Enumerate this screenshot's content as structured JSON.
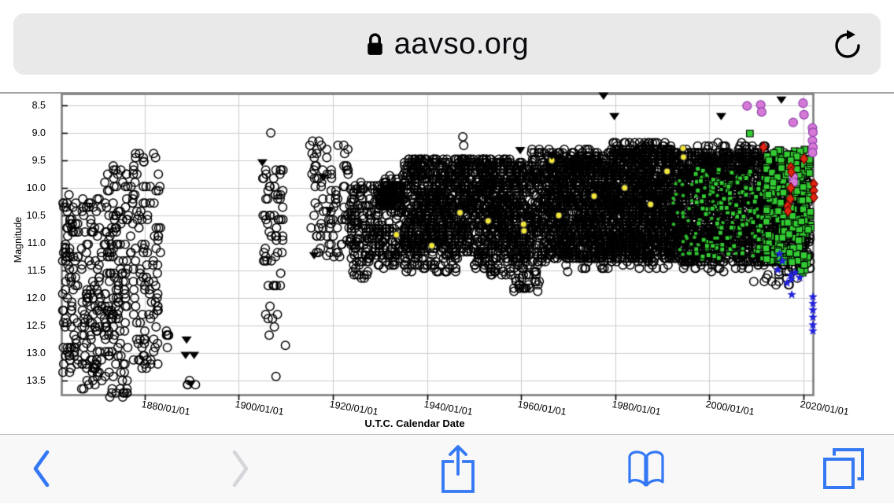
{
  "browser": {
    "url": "aavso.org",
    "lock_icon": "lock-icon",
    "reload_icon": "reload-icon"
  },
  "toolbar": {
    "accent_color": "#3478f4",
    "disabled_color": "#d5d5da",
    "icons": [
      "back-chevron-icon",
      "forward-chevron-icon",
      "share-icon",
      "bookmarks-icon",
      "tabs-icon"
    ]
  },
  "chart_data": {
    "type": "scatter",
    "title": "",
    "xlabel": "U.T.C. Calendar Date",
    "ylabel": "Magnitude",
    "grid": true,
    "legend": "none",
    "x_range_years": [
      1862.3,
      2022.0
    ],
    "y_range_mag": [
      8.29,
      13.76
    ],
    "y_axis_inverted_note": "brighter (smaller magnitude) at top",
    "x_tick_years": [
      1880,
      1900,
      1920,
      1940,
      1960,
      1980,
      2000,
      2020
    ],
    "x_tick_labels": [
      "1880/01/01",
      "1900/01/01",
      "1920/01/01",
      "1940/01/01",
      "1960/01/01",
      "1980/01/01",
      "2000/01/01",
      "2020/01/01"
    ],
    "y_ticks": [
      8.5,
      9.0,
      9.5,
      10.0,
      10.5,
      11.0,
      11.5,
      12.0,
      12.5,
      13.0,
      13.5
    ],
    "colors": {
      "grid": "#cbcbcb",
      "plot_border": "#7e7e7e",
      "visual": "#000000",
      "green_ccd": "#33cc33",
      "yellow": "#f2e73a",
      "magenta": "#d678d6",
      "red": "#e02512",
      "blue": "#2222dd"
    },
    "series": [
      {
        "name": "visual-historical-open-circles",
        "marker": "open-circle",
        "color": "#000000",
        "size": 10.5,
        "stroke_width": 1.5,
        "strips_per_year": 2.2,
        "jitter": 0.3,
        "quantize": 0.075,
        "clusters": [
          [
            1862.5,
            1866.0,
            10.15,
            13.4,
            90
          ],
          [
            1866.5,
            1871.0,
            10.2,
            13.65,
            110
          ],
          [
            1871.3,
            1876.5,
            9.6,
            13.85,
            150
          ],
          [
            1876.0,
            1883.5,
            9.3,
            11.25,
            60
          ],
          [
            1877.5,
            1883.0,
            11.3,
            13.3,
            65
          ],
          [
            1884.5,
            1885.4,
            12.55,
            12.95,
            6
          ],
          [
            1888.8,
            1891.0,
            13.4,
            13.7,
            4
          ],
          [
            1905.0,
            1909.5,
            9.65,
            11.45,
            52
          ],
          [
            1905.5,
            1909.0,
            11.5,
            13.45,
            14
          ],
          [
            1915.0,
            1923.5,
            9.15,
            11.25,
            88
          ]
        ],
        "points": [
          [
            1906.8,
            9.0
          ],
          [
            1909.9,
            12.86
          ],
          [
            1918.7,
            11.23
          ]
        ]
      },
      {
        "name": "visual-band-open-circles",
        "marker": "open-circle",
        "color": "#000000",
        "size": 10.5,
        "stroke_width": 1.5,
        "strips_per_year": 1.5,
        "jitter": 0.5,
        "quantize": 0.06,
        "clusters": [
          [
            1923.5,
            1930.0,
            9.9,
            11.35,
            140
          ],
          [
            1924.0,
            1929.0,
            11.35,
            11.65,
            12
          ],
          [
            1929.5,
            1935.0,
            9.8,
            11.45,
            130
          ],
          [
            1929.8,
            1934.5,
            9.95,
            10.35,
            130
          ],
          [
            1935.0,
            1947.0,
            9.45,
            11.15,
            600
          ],
          [
            1935.0,
            1947.0,
            11.15,
            11.55,
            60
          ],
          [
            1947.0,
            1958.0,
            9.45,
            11.2,
            600
          ],
          [
            1950.0,
            1958.0,
            11.2,
            11.6,
            50
          ],
          [
            1958.0,
            1966.0,
            9.55,
            11.35,
            380
          ],
          [
            1958.0,
            1964.0,
            11.35,
            11.9,
            40
          ],
          [
            1966.0,
            1980.0,
            9.35,
            11.3,
            1000
          ],
          [
            1980.0,
            1994.0,
            9.3,
            11.3,
            1050
          ],
          [
            1994.0,
            2008.0,
            9.35,
            11.35,
            1000
          ],
          [
            2008.0,
            2016.0,
            9.35,
            11.4,
            520
          ],
          [
            2016.0,
            2021.5,
            9.4,
            11.5,
            260
          ],
          [
            1978.0,
            1992.0,
            9.15,
            9.4,
            55
          ],
          [
            1994.0,
            2012.0,
            9.2,
            9.42,
            40
          ],
          [
            1962.0,
            1976.0,
            9.3,
            9.5,
            40
          ],
          [
            1966.0,
            1990.0,
            11.3,
            11.5,
            30
          ],
          [
            1990.0,
            2010.0,
            11.3,
            11.5,
            25
          ],
          [
            2008.0,
            2019.0,
            11.45,
            11.8,
            14
          ]
        ],
        "points": [
          [
            1947.6,
            9.07
          ],
          [
            1947.8,
            9.23
          ],
          [
            1962.3,
            9.3
          ]
        ]
      },
      {
        "name": "green-ccd-faint-dots",
        "marker": "dot",
        "color": "#2db82d",
        "size": 4.5,
        "strips_per_year": 1.5,
        "jitter": 0.5,
        "clusters": [
          [
            1992.0,
            2012.0,
            9.8,
            11.25,
            90
          ]
        ]
      },
      {
        "name": "green-ccd-early-squares",
        "marker": "square",
        "color": "#33cc33",
        "edge": "#000000",
        "size": 6,
        "strips_per_year": 1.5,
        "jitter": 0.5,
        "clusters": [
          [
            1997.0,
            2012.0,
            9.65,
            11.3,
            130
          ]
        ]
      },
      {
        "name": "green-ccd-recent-squares",
        "marker": "square",
        "color": "#33cc33",
        "edge": "#000000",
        "size": 8.5,
        "strips_per_year": 2.5,
        "jitter": 0.3,
        "clusters": [
          [
            2012.0,
            2021.6,
            9.3,
            11.35,
            230
          ],
          [
            2018.0,
            2021.3,
            11.35,
            11.6,
            6
          ]
        ],
        "points": [
          [
            2008.6,
            9.01
          ]
        ]
      },
      {
        "name": "yellow-observer-dots",
        "marker": "dot",
        "color": "#f2e73a",
        "edge": "#333333",
        "size": 8,
        "points": [
          [
            1933.5,
            10.85
          ],
          [
            1941.0,
            11.05
          ],
          [
            1947.0,
            10.45
          ],
          [
            1953.0,
            10.6
          ],
          [
            1960.5,
            10.66
          ],
          [
            1960.6,
            10.78
          ],
          [
            1966.5,
            9.5
          ],
          [
            1968.0,
            10.5
          ],
          [
            1975.5,
            10.15
          ],
          [
            1982.0,
            10.0
          ],
          [
            1987.5,
            10.3
          ],
          [
            1991.0,
            9.7
          ],
          [
            1994.4,
            9.28
          ],
          [
            1994.5,
            9.44
          ]
        ]
      },
      {
        "name": "magenta-bright-circles",
        "marker": "dot",
        "color": "#d678d6",
        "edge": "#8c3fa8",
        "size": 11,
        "points": [
          [
            2008.0,
            8.51
          ],
          [
            2010.9,
            8.49
          ],
          [
            2011.1,
            8.62
          ],
          [
            2017.8,
            8.81
          ],
          [
            2019.9,
            8.46
          ],
          [
            2020.1,
            8.67
          ],
          [
            2021.9,
            8.91
          ],
          [
            2022.0,
            8.99
          ],
          [
            2021.9,
            9.14
          ],
          [
            2022.0,
            9.26
          ],
          [
            2021.9,
            9.36
          ],
          [
            2017.8,
            9.8
          ],
          [
            2017.9,
            9.9
          ]
        ]
      },
      {
        "name": "red-diamonds",
        "marker": "diamond",
        "color": "#e02512",
        "edge": "#6b0000",
        "size": 11,
        "points": [
          [
            2011.5,
            9.26
          ],
          [
            2020.1,
            9.47
          ],
          [
            2017.3,
            9.63
          ],
          [
            2017.4,
            9.71
          ],
          [
            2022.2,
            9.93
          ],
          [
            2022.2,
            10.05
          ],
          [
            2022.2,
            10.17
          ],
          [
            2017.3,
            10.0
          ],
          [
            2017.2,
            10.2
          ],
          [
            2016.6,
            10.33
          ],
          [
            2016.7,
            10.42
          ]
        ]
      },
      {
        "name": "blue-star-observations",
        "marker": "star",
        "color": "#2222dd",
        "size": 12,
        "points": [
          [
            2014.5,
            11.49
          ],
          [
            2015.5,
            11.33
          ],
          [
            2016.5,
            11.73
          ],
          [
            2017.3,
            11.59
          ],
          [
            2017.4,
            11.66
          ],
          [
            2018.2,
            11.54
          ],
          [
            2017.5,
            11.94
          ],
          [
            2019.2,
            11.63
          ],
          [
            2014.9,
            11.2
          ],
          [
            2022.0,
            11.98
          ],
          [
            2022.0,
            12.1
          ],
          [
            2022.0,
            12.22
          ],
          [
            2022.0,
            12.35
          ],
          [
            2022.0,
            12.49
          ],
          [
            2022.0,
            12.6
          ]
        ]
      },
      {
        "name": "fainter-than-triangles",
        "marker": "triangle-down",
        "color": "#000000",
        "size": 13,
        "points": [
          [
            1888.9,
            12.76
          ],
          [
            1888.7,
            13.04
          ],
          [
            1890.5,
            13.04
          ],
          [
            1889.8,
            13.56
          ],
          [
            1905.0,
            9.54
          ],
          [
            1918.0,
            9.81
          ],
          [
            1919.3,
            10.41
          ],
          [
            1916.0,
            11.23
          ],
          [
            1977.5,
            8.33
          ],
          [
            1979.8,
            8.7
          ],
          [
            2002.5,
            8.7
          ],
          [
            2015.3,
            8.4
          ],
          [
            1974.3,
            9.47
          ],
          [
            1976.5,
            9.54
          ],
          [
            2000.3,
            9.76
          ],
          [
            2003.6,
            9.81
          ],
          [
            1966.5,
            9.42
          ],
          [
            1959.8,
            9.32
          ]
        ]
      }
    ]
  }
}
